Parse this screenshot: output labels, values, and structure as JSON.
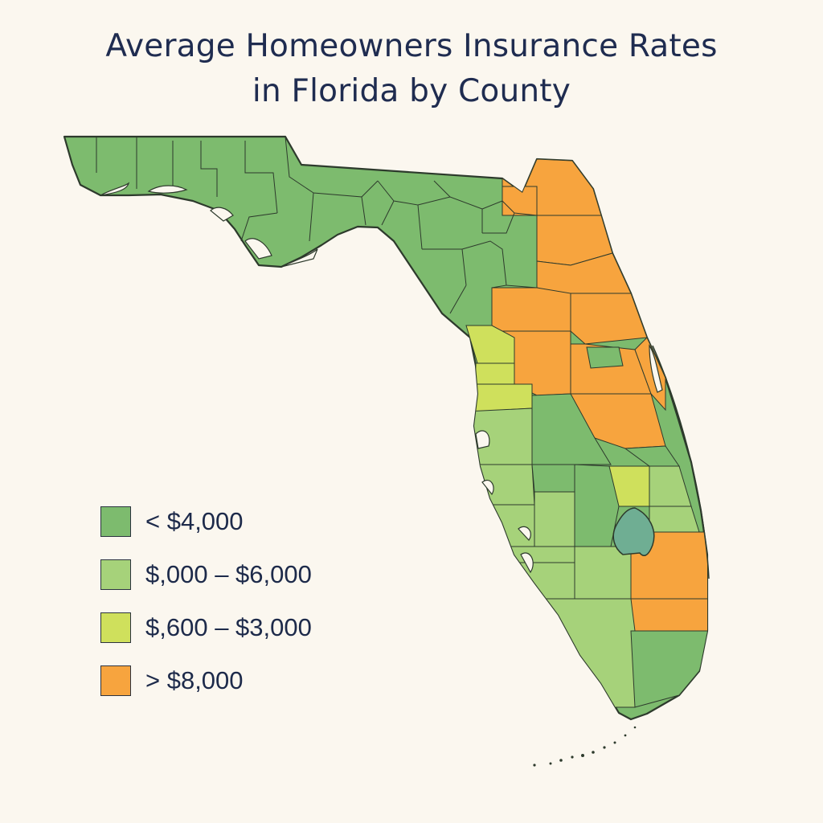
{
  "title": {
    "line1": "Average Homeowners Insurance Rates",
    "line2": "in Florida by County"
  },
  "colors": {
    "background": "#fbf7ef",
    "dark_green": "#7dbb6e",
    "light_green": "#a6d27a",
    "yellow_green": "#cfe05c",
    "orange": "#f7a43e",
    "lake_teal": "#6fae93",
    "border": "#2d3a2c"
  },
  "legend": [
    {
      "label": "< $4,000",
      "color": "#7dbb6e"
    },
    {
      "label": "$,000 – $6,000",
      "color": "#a6d27a"
    },
    {
      "label": "$,600 – $3,000",
      "color": "#cfe05c"
    },
    {
      "label": "> $8,000",
      "color": "#f7a43e"
    }
  ],
  "map": {
    "region": "Florida",
    "feature_types": [
      "counties",
      "lake"
    ],
    "lake_icon": "lake-okeechobee"
  }
}
